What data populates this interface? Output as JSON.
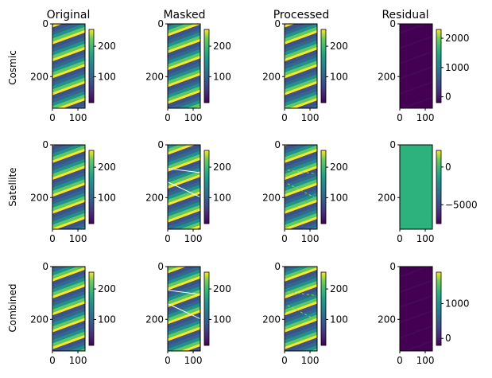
{
  "column_titles": [
    "Original",
    "Masked",
    "Processed",
    "Residual"
  ],
  "row_labels": [
    "Cosmic",
    "Satellite",
    "Combined"
  ],
  "colors": {
    "viridis_low": "#440154",
    "viridis_mid": "#21918c",
    "viridis_high": "#fde725",
    "mask_line": "#ffffff",
    "satellite_residual_fill": "#2db27d"
  },
  "chart_data": {
    "type": "heatmap",
    "colormap": "viridis",
    "image_shape": {
      "rows": 320,
      "cols": 128
    },
    "x_ticks": [
      0,
      100
    ],
    "y_ticks": [
      0,
      200
    ],
    "panels": [
      {
        "row": "Cosmic",
        "col": "Original",
        "colorbar_ticks": [
          100,
          200
        ],
        "clim": [
          15,
          255
        ],
        "pattern": "diagonal-stripes"
      },
      {
        "row": "Cosmic",
        "col": "Masked",
        "colorbar_ticks": [
          100,
          200
        ],
        "clim": [
          15,
          255
        ],
        "pattern": "diagonal-stripes"
      },
      {
        "row": "Cosmic",
        "col": "Processed",
        "colorbar_ticks": [
          100,
          200
        ],
        "clim": [
          15,
          255
        ],
        "pattern": "diagonal-stripes"
      },
      {
        "row": "Cosmic",
        "col": "Residual",
        "colorbar_ticks": [
          0,
          1000,
          2000
        ],
        "clim": [
          -200,
          2300
        ],
        "pattern": "near-uniform-low"
      },
      {
        "row": "Satellite",
        "col": "Original",
        "colorbar_ticks": [
          100,
          200
        ],
        "clim": [
          15,
          255
        ],
        "pattern": "diagonal-stripes"
      },
      {
        "row": "Satellite",
        "col": "Masked",
        "colorbar_ticks": [
          100,
          200
        ],
        "clim": [
          15,
          255
        ],
        "pattern": "diagonal-stripes-with-masked-lines"
      },
      {
        "row": "Satellite",
        "col": "Processed",
        "colorbar_ticks": [
          100,
          200
        ],
        "clim": [
          15,
          255
        ],
        "pattern": "diagonal-stripes"
      },
      {
        "row": "Satellite",
        "col": "Residual",
        "colorbar_ticks": [
          -5000,
          0
        ],
        "clim": [
          -7500,
          2200
        ],
        "pattern": "uniform"
      },
      {
        "row": "Combined",
        "col": "Original",
        "colorbar_ticks": [
          100,
          200
        ],
        "clim": [
          15,
          255
        ],
        "pattern": "diagonal-stripes"
      },
      {
        "row": "Combined",
        "col": "Masked",
        "colorbar_ticks": [
          100,
          200
        ],
        "clim": [
          15,
          255
        ],
        "pattern": "diagonal-stripes-with-masked-lines"
      },
      {
        "row": "Combined",
        "col": "Processed",
        "colorbar_ticks": [
          100,
          200
        ],
        "clim": [
          15,
          255
        ],
        "pattern": "diagonal-stripes"
      },
      {
        "row": "Combined",
        "col": "Residual",
        "colorbar_ticks": [
          0,
          1000
        ],
        "clim": [
          -200,
          1900
        ],
        "pattern": "near-uniform-low"
      }
    ]
  }
}
